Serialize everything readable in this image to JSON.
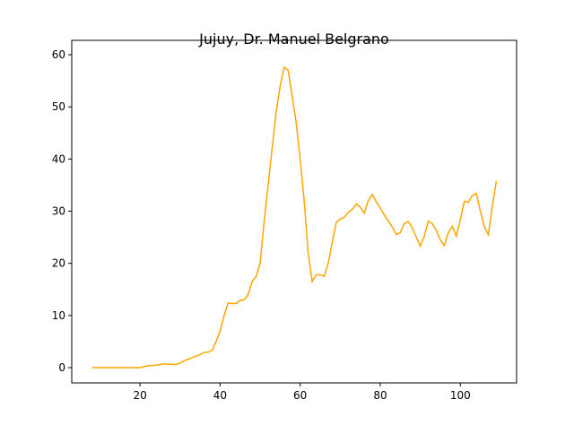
{
  "chart_data": {
    "type": "line",
    "title": "Jujuy, Dr. Manuel Belgrano",
    "x": [
      8,
      9,
      10,
      11,
      12,
      13,
      14,
      15,
      16,
      17,
      18,
      19,
      20,
      21,
      22,
      23,
      24,
      25,
      26,
      27,
      28,
      29,
      30,
      31,
      32,
      33,
      34,
      35,
      36,
      37,
      38,
      39,
      40,
      41,
      42,
      43,
      44,
      45,
      46,
      47,
      48,
      49,
      50,
      51,
      52,
      53,
      54,
      55,
      56,
      57,
      58,
      59,
      60,
      61,
      62,
      63,
      64,
      65,
      66,
      67,
      68,
      69,
      70,
      71,
      72,
      73,
      74,
      75,
      76,
      77,
      78,
      79,
      80,
      81,
      82,
      83,
      84,
      85,
      86,
      87,
      88,
      89,
      90,
      91,
      92,
      93,
      94,
      95,
      96,
      97,
      98,
      99,
      100,
      101,
      102,
      103,
      104,
      105,
      106,
      107,
      108,
      109
    ],
    "series": [
      {
        "color": "#ffa500",
        "values": [
          0,
          0,
          0,
          0,
          0,
          0,
          0,
          0,
          0,
          0,
          0,
          0,
          0,
          0.2,
          0.4,
          0.4,
          0.5,
          0.6,
          0.7,
          0.7,
          0.6,
          0.6,
          0.9,
          1.3,
          1.6,
          1.9,
          2.2,
          2.5,
          2.9,
          3.0,
          3.3,
          5,
          7,
          10,
          12.4,
          12.3,
          12.3,
          12.9,
          13.0,
          14,
          16.5,
          17.5,
          20,
          28,
          35,
          42,
          49,
          54,
          57.6,
          57,
          52,
          47,
          40,
          32,
          22,
          16.5,
          17.8,
          17.8,
          17.5,
          20,
          24,
          27.8,
          28.5,
          28.8,
          29.8,
          30.3,
          31.4,
          30.8,
          29.6,
          32,
          33.2,
          31.8,
          30.6,
          29.3,
          28.1,
          27,
          25.5,
          25.9,
          27.6,
          28,
          26.8,
          25,
          23.3,
          25.2,
          28.1,
          27.6,
          26.3,
          24.5,
          23.4,
          25.9,
          27.1,
          25.2,
          28.4,
          31.9,
          31.7,
          33,
          33.4,
          30,
          27,
          25.5,
          31,
          35.8
        ]
      }
    ],
    "xlim": [
      2.95,
      114.05
    ],
    "ylim": [
      -2.92,
      62.75
    ],
    "xticks": [
      20,
      40,
      60,
      80,
      100
    ],
    "yticks": [
      0,
      10,
      20,
      30,
      40,
      50,
      60
    ]
  }
}
